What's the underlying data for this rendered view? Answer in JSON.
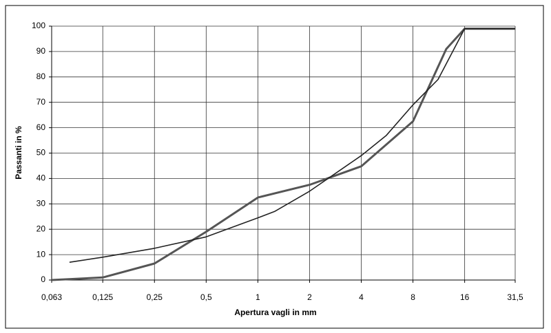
{
  "chart_data": {
    "type": "line",
    "xlabel": "Apertura vagli in mm",
    "ylabel": "Passanti in %",
    "xscale": "log",
    "xlim": [
      0.063,
      31.5
    ],
    "xticks": [
      {
        "value": 0.063,
        "label": "0,063"
      },
      {
        "value": 0.125,
        "label": "0,125"
      },
      {
        "value": 0.25,
        "label": "0,25"
      },
      {
        "value": 0.5,
        "label": "0,5"
      },
      1,
      2,
      4,
      8,
      16,
      {
        "value": 31.5,
        "label": "31,5"
      }
    ],
    "ylim": [
      0,
      100
    ],
    "yticks": [
      0,
      10,
      20,
      30,
      40,
      50,
      60,
      70,
      80,
      90,
      100
    ],
    "grid": true,
    "series": [
      {
        "color": "#555555",
        "x": [
          0.063,
          0.125,
          0.25,
          0.5,
          1,
          2,
          4,
          8,
          12.5,
          16,
          31.5
        ],
        "values": [
          0,
          1,
          6.5,
          19,
          32.5,
          37.5,
          44.8,
          62.5,
          91,
          99,
          99
        ]
      },
      {
        "color": "#222222",
        "x": [
          0.08,
          0.125,
          0.25,
          0.5,
          1,
          1.25,
          2,
          4,
          5.6,
          8,
          11.2,
          16,
          31.5
        ],
        "values": [
          7,
          9,
          12.5,
          17,
          24.5,
          27,
          35,
          49,
          57,
          69,
          79,
          99,
          99
        ]
      }
    ]
  }
}
